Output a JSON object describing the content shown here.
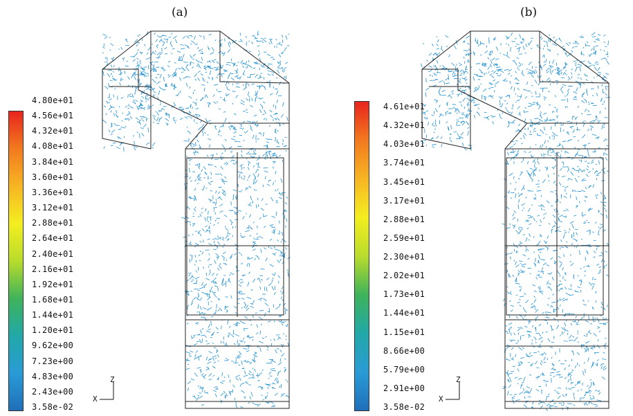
{
  "panels": [
    {
      "label": "(a)",
      "colorbar_ticks": [
        "4.80e+01",
        "4.56e+01",
        "4.32e+01",
        "4.08e+01",
        "3.84e+01",
        "3.60e+01",
        "3.36e+01",
        "3.12e+01",
        "2.88e+01",
        "2.64e+01",
        "2.40e+01",
        "2.16e+01",
        "1.92e+01",
        "1.68e+01",
        "1.44e+01",
        "1.20e+01",
        "9.62e+00",
        "7.23e+00",
        "4.83e+00",
        "2.43e+00",
        "3.58e-02"
      ]
    },
    {
      "label": "(b)",
      "colorbar_ticks": [
        "4.61e+01",
        "4.32e+01",
        "4.03e+01",
        "3.74e+01",
        "3.45e+01",
        "3.17e+01",
        "2.88e+01",
        "2.59e+01",
        "2.30e+01",
        "2.02e+01",
        "1.73e+01",
        "1.44e+01",
        "1.15e+01",
        "8.66e+00",
        "5.79e+00",
        "2.91e+00",
        "3.58e-02"
      ]
    }
  ],
  "axis_triad": {
    "z_label": "Z",
    "x_label": "X"
  },
  "colors": {
    "vector": "#1e8fd0",
    "outline": "#222222",
    "colormap": [
      "#e8251e",
      "#f27a1f",
      "#f7b523",
      "#f4ee20",
      "#b9dc2c",
      "#3fb35a",
      "#22a8a8",
      "#2a9bd6",
      "#1f6fb8"
    ]
  }
}
